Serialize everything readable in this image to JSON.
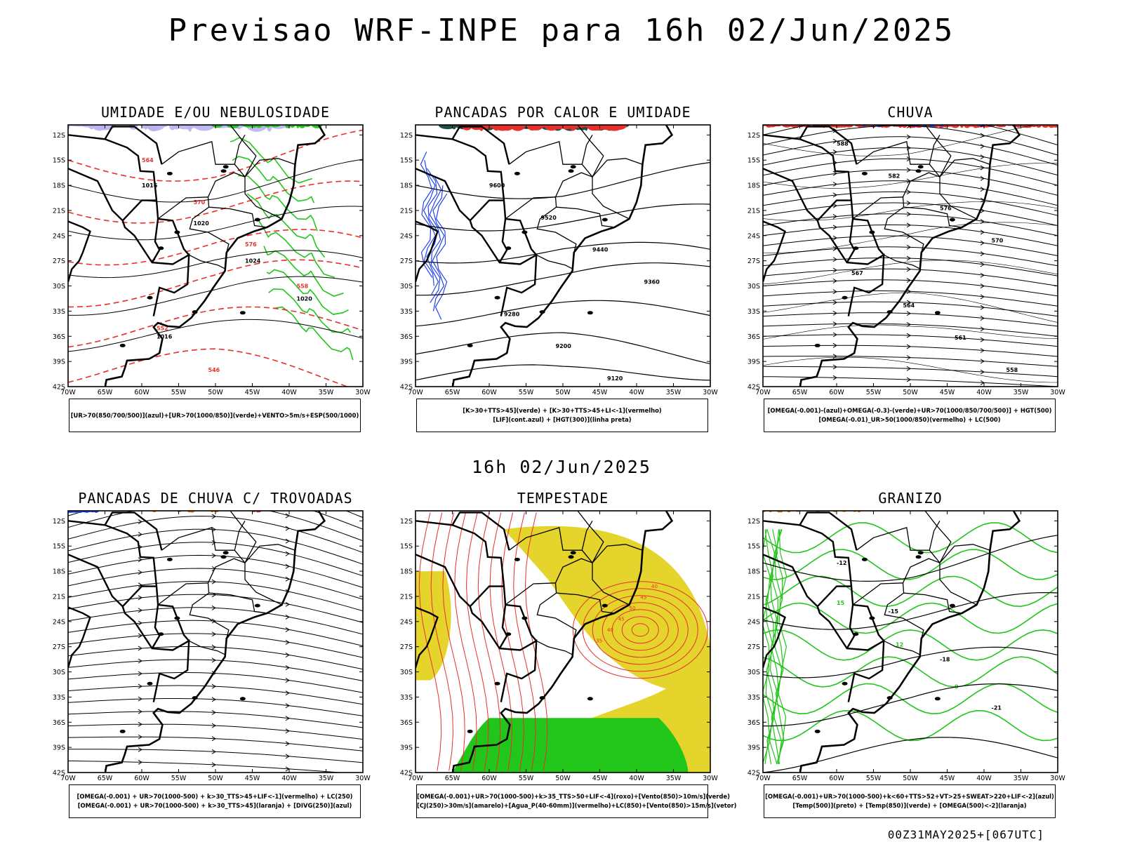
{
  "title": "Previsao WRF-INPE  para 16h 02/Jun/2025",
  "mid_title": "16h 02/Jun/2025",
  "footer": "00Z31MAY2025+[067UTC]",
  "axes": {
    "lat_labels": [
      "12S",
      "15S",
      "18S",
      "21S",
      "24S",
      "27S",
      "30S",
      "33S",
      "36S",
      "39S",
      "42S"
    ],
    "lon_labels": [
      "70W",
      "65W",
      "60W",
      "55W",
      "50W",
      "45W",
      "40W",
      "35W",
      "30W"
    ]
  },
  "colors": {
    "coast": "#000000",
    "green": "#22c51a",
    "red": "#e8302a",
    "blue": "#2244ee",
    "lavender": "#b9b4f0",
    "darkteal": "#1f4d47",
    "yellow": "#e4d42c",
    "orange": "#f07a10",
    "stream": "#000000"
  },
  "panels": [
    {
      "title": "UMIDADE E/OU NEBULOSIDADE",
      "legend": [
        "[UR>70(850/700/500)](azul)+[UR>70(1000/850)](verde)+VENTO>5m/s+ESP(500/1000)"
      ],
      "contour_labels": [
        "1016",
        "1020",
        "1024",
        "1020",
        "1016",
        "564",
        "570",
        "576",
        "558",
        "552",
        "546"
      ]
    },
    {
      "title": "PANCADAS POR CALOR E UMIDADE",
      "legend": [
        "[K>30+TTS>45](verde)  +  [K>30+TTS>45+LI<-1](vermelho)",
        "[LIF](cont.azul)  +  [HGT(300)](linha preta)"
      ],
      "contour_labels": [
        "9600",
        "9520",
        "9440",
        "9360",
        "9280",
        "9200",
        "9120"
      ]
    },
    {
      "title": "CHUVA",
      "legend": [
        "[OMEGA(-0.001)-(azul)+OMEGA(-0.3)-(verde)+UR>70(1000/850/700/500)]  +  HGT(500)",
        "[OMEGA(-0.01)_UR>50(1000/850)(vermelho)  +  LC(500)"
      ],
      "contour_labels": [
        "588",
        "582",
        "576",
        "570",
        "567",
        "564",
        "561",
        "558"
      ]
    },
    {
      "title": "PANCADAS DE CHUVA C/ TROVOADAS",
      "legend": [
        "[OMEGA(-0.001)  +  UR>70(1000-500)  +  k>30_TTS>45+LIF<-1](vermelho)  +  LC(250)",
        "[OMEGA(-0.001)  +  UR>70(1000-500)  +  k>30_TTS>45](laranja)  +  [DIVG(250)](azul)"
      ],
      "contour_labels": []
    },
    {
      "title": "TEMPESTADE",
      "legend": [
        "[OMEGA(-0.001)+UR>70(1000-500)+k>35_TTS>50+LIF<-4](roxo)+[Vento(850)>10m/s](verde)",
        "[CJ(250)>30m/s](amarelo)+[Agua_P(40-60mm)](vermelho)+LC(850)+[Vento(850)>15m/s](vetor)"
      ],
      "contour_labels": [
        "40",
        "45",
        "50",
        "45",
        "40",
        "35"
      ]
    },
    {
      "title": "GRANIZO",
      "legend": [
        "[OMEGA(-0.001)+UR>70(1000-500)+k<60+TTS>52+VT>25+SWEAT>220+LIF<-2](azul)",
        "[Temp(500)](preto)  +  [Temp(850)](verde)  +  [OMEGA(500)<-2](laranja)"
      ],
      "contour_labels": [
        "-12",
        "-15",
        "-18",
        "-21",
        "15",
        "12",
        "9"
      ]
    }
  ]
}
